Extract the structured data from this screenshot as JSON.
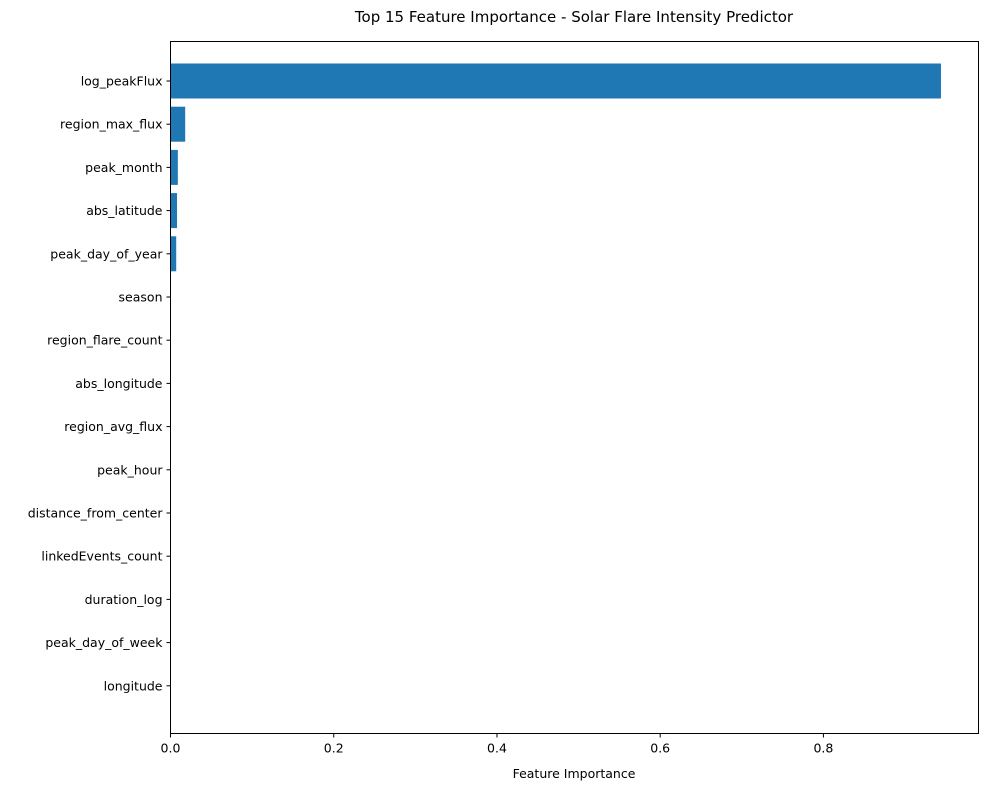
{
  "chart_data": {
    "type": "bar",
    "orientation": "horizontal",
    "title": "Top 15 Feature Importance - Solar Flare Intensity Predictor",
    "xlabel": "Feature Importance",
    "ylabel": "",
    "xlim": [
      0,
      0.99
    ],
    "xticks": [
      0.0,
      0.2,
      0.4,
      0.6,
      0.8
    ],
    "xtick_labels": [
      "0.0",
      "0.2",
      "0.4",
      "0.6",
      "0.8"
    ],
    "grid": false,
    "bar_color": "#1f77b4",
    "categories": [
      "log_peakFlux",
      "region_max_flux",
      "peak_month",
      "abs_latitude",
      "peak_day_of_year",
      "season",
      "region_flare_count",
      "abs_longitude",
      "region_avg_flux",
      "peak_hour",
      "distance_from_center",
      "linkedEvents_count",
      "duration_log",
      "peak_day_of_week",
      "longitude"
    ],
    "values": [
      0.944,
      0.018,
      0.009,
      0.008,
      0.007,
      0.0,
      0.0,
      0.0,
      0.0,
      0.0,
      0.0,
      0.0,
      0.0,
      0.0,
      0.0
    ]
  }
}
